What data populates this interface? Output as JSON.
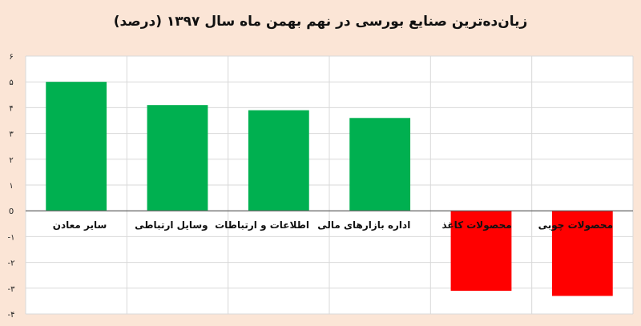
{
  "chart_data": {
    "type": "bar",
    "title": "زیان‌ده‌ترین صنایع بورسی در نهم بهمن ماه سال ۱۳۹۷ (درصد)",
    "categories": [
      "سایر معادن",
      "وسایل ارتباطی",
      "اطلاعات و ارتباطات",
      "اداره بازارهای مالی",
      "محصولات کاغذ",
      "محصولات چوبی"
    ],
    "values": [
      5.0,
      4.1,
      3.9,
      3.6,
      -3.1,
      -3.3
    ],
    "ylim": [
      -4,
      6
    ],
    "yticks": [
      "-۴",
      "-۳",
      "-۲",
      "-۱",
      "0",
      "۱",
      "۲",
      "۳",
      "۴",
      "۵",
      "۶"
    ],
    "grid": true,
    "colors": {
      "positive": "#00b050",
      "negative": "#ff0000",
      "background": "#fbe5d6",
      "plot_background": "#ffffff"
    }
  }
}
